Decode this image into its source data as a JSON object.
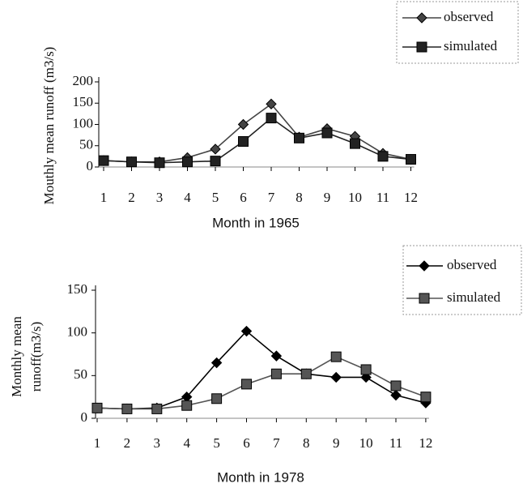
{
  "chart_data": [
    {
      "type": "line",
      "ylabel": [
        "Mouthly mean runoff (m3/s)"
      ],
      "xlabel": "Month in 1965",
      "categories": [
        "1",
        "2",
        "3",
        "4",
        "5",
        "6",
        "7",
        "8",
        "9",
        "10",
        "11",
        "12"
      ],
      "ylim": [
        0,
        200
      ],
      "yticks": [
        0,
        50,
        100,
        150,
        200
      ],
      "grid": false,
      "legend": "top-right",
      "series": [
        {
          "name": "observed",
          "color": "#444",
          "marker": "diamond",
          "values": [
            15,
            12,
            12,
            22,
            42,
            100,
            148,
            70,
            90,
            72,
            32,
            18
          ]
        },
        {
          "name": "simulated",
          "color": "#222",
          "marker": "square",
          "values": [
            15,
            12,
            10,
            12,
            14,
            60,
            115,
            68,
            80,
            55,
            25,
            18
          ]
        }
      ]
    },
    {
      "type": "line",
      "ylabel": [
        "Monthly mean",
        "runoff(m3/s)"
      ],
      "xlabel": "Month in 1978",
      "categories": [
        "1",
        "2",
        "3",
        "4",
        "5",
        "6",
        "7",
        "8",
        "9",
        "10",
        "11",
        "12"
      ],
      "ylim": [
        0,
        150
      ],
      "yticks": [
        0,
        50,
        100,
        150
      ],
      "grid": false,
      "legend": "top-right",
      "series": [
        {
          "name": "observed",
          "color": "#000",
          "marker": "diamond",
          "values": [
            12,
            11,
            12,
            25,
            65,
            102,
            73,
            52,
            48,
            48,
            27,
            18
          ]
        },
        {
          "name": "simulated",
          "color": "#555",
          "marker": "square",
          "values": [
            12,
            11,
            11,
            15,
            23,
            40,
            52,
            52,
            72,
            57,
            38,
            25
          ]
        }
      ]
    }
  ]
}
